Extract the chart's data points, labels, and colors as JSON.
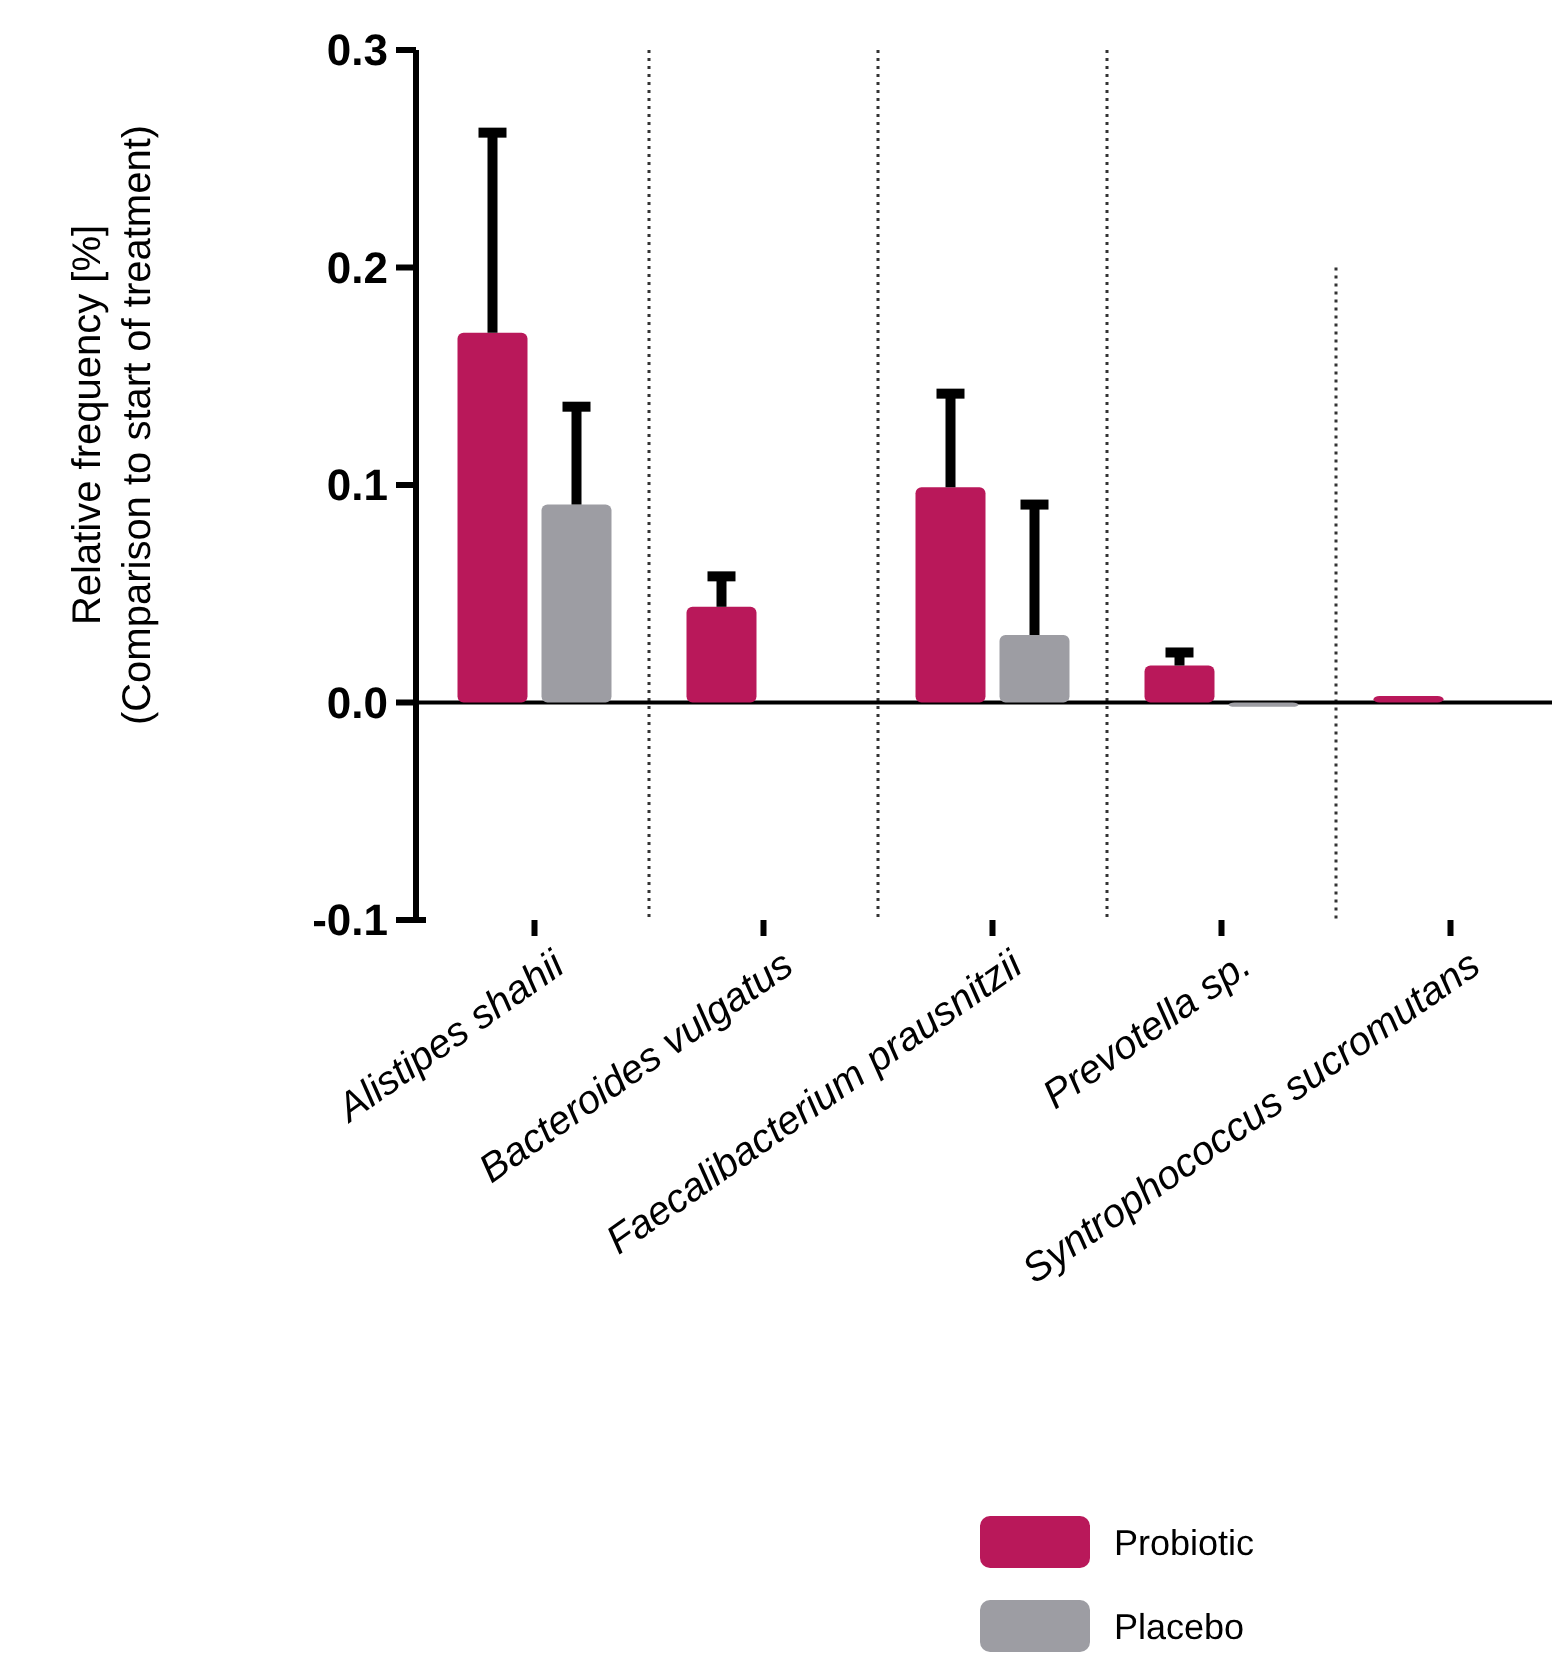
{
  "chart_data": {
    "type": "bar",
    "ylabel": "Relative frequency [%]\n(Comparison to start of treatment)",
    "categories": [
      "Alistipes shahii",
      "Bacteroides vulgatus",
      "Faecalibacterium prausnitzii",
      "Prevotella sp.",
      "Syntrophococcus sucromutans"
    ],
    "series": [
      {
        "name": "Probiotic",
        "color": "#b9185a",
        "values": [
          0.17,
          0.044,
          0.099,
          0.017,
          0.003
        ],
        "errors": [
          [
            0.17,
            0.262
          ],
          [
            0.044,
            0.058
          ],
          [
            0.099,
            0.142
          ],
          [
            0.017,
            0.023
          ],
          null
        ]
      },
      {
        "name": "Placebo",
        "color": "#9d9da3",
        "values": [
          0.091,
          null,
          0.031,
          -0.002,
          null
        ],
        "errors": [
          [
            0.091,
            0.136
          ],
          null,
          [
            0.031,
            0.091
          ],
          null,
          null
        ]
      }
    ],
    "ylim": [
      -0.1,
      0.3
    ],
    "yticks": [
      {
        "value": -0.1,
        "label": "-0.1"
      },
      {
        "value": 0,
        "label": "0.0"
      },
      {
        "value": 0.1,
        "label": "0.1"
      },
      {
        "value": 0.2,
        "label": "0.2"
      },
      {
        "value": 0.3,
        "label": "0.3"
      }
    ],
    "grid": false,
    "legend": "bottom right"
  }
}
